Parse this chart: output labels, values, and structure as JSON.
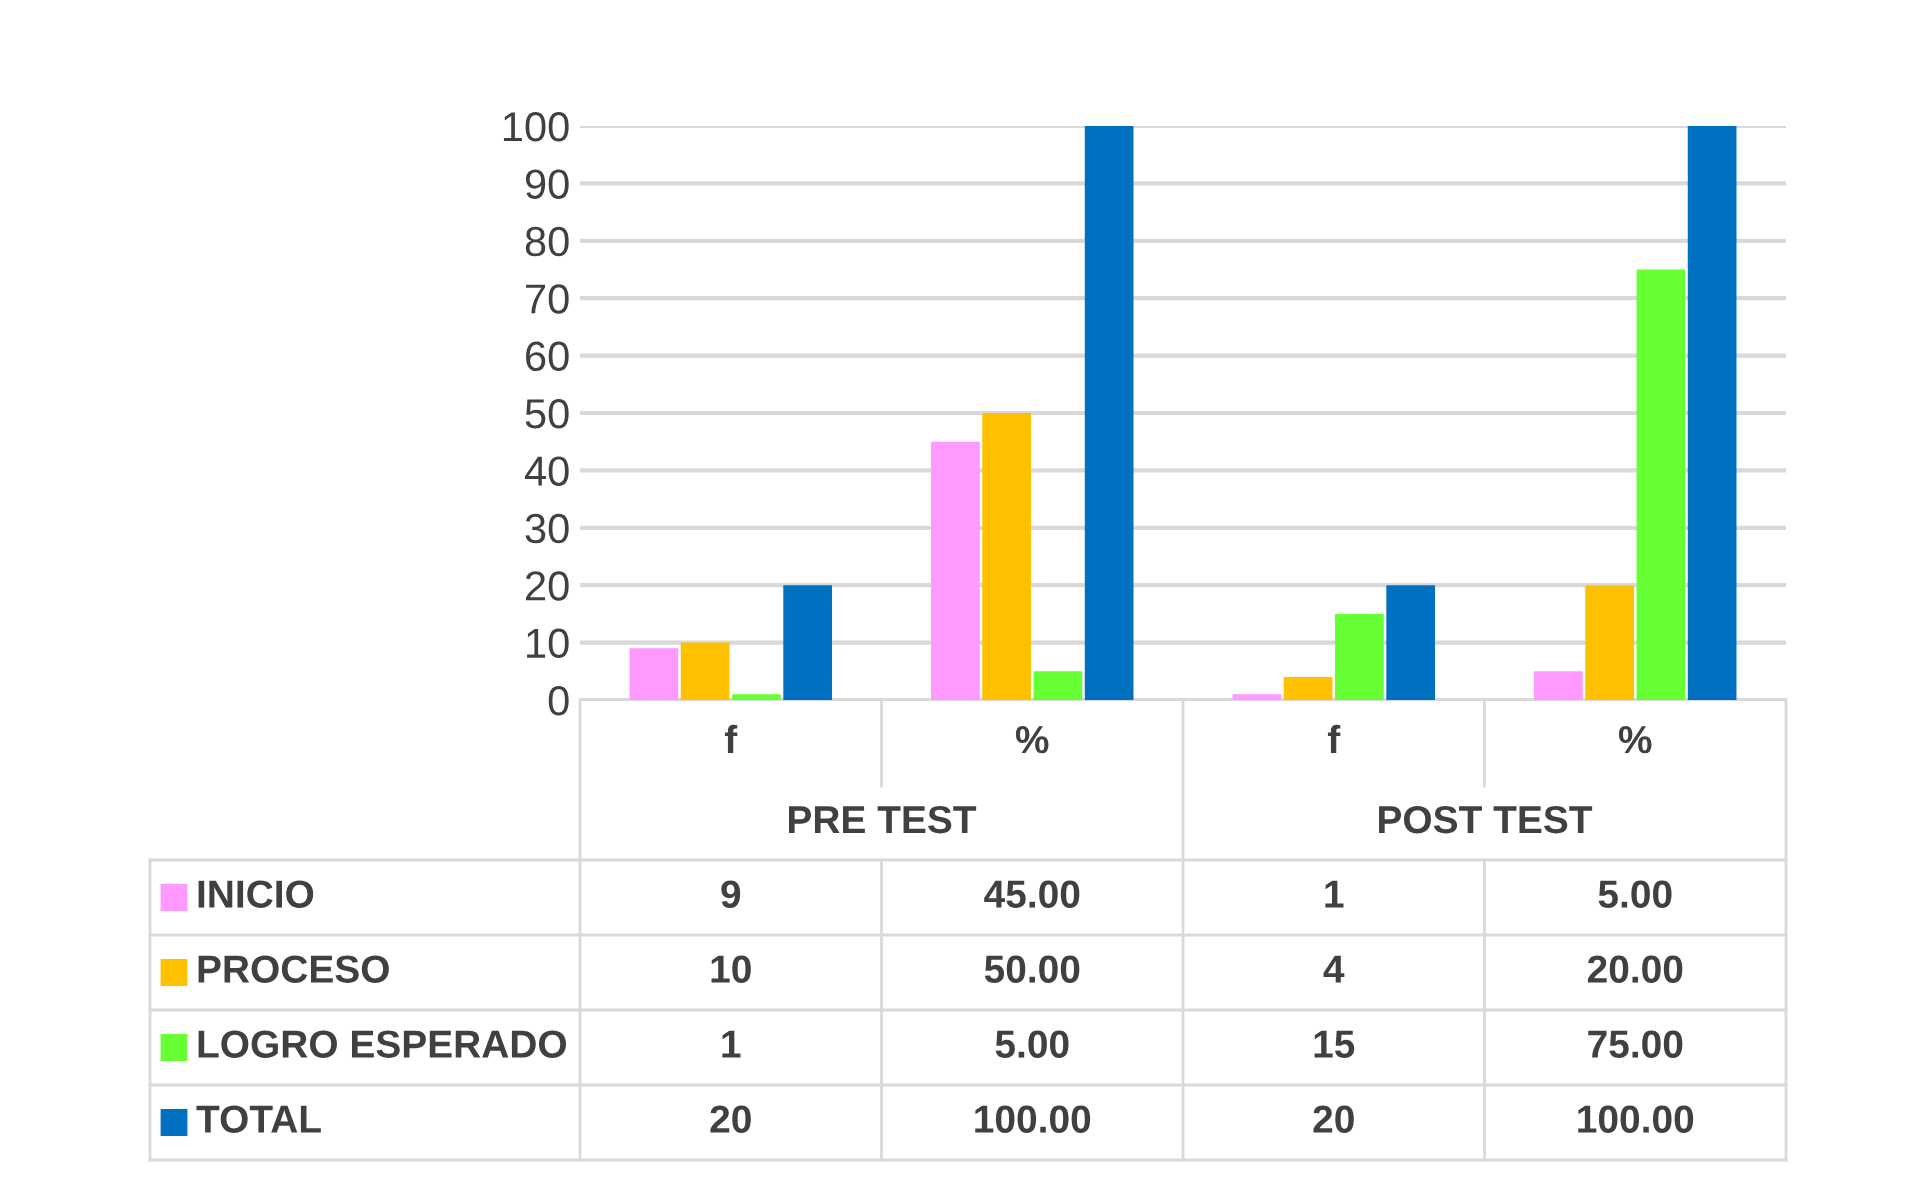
{
  "chart_data": {
    "type": "bar",
    "categories": [
      "f",
      "%",
      "f",
      "%"
    ],
    "annotations": [
      "PRE TEST",
      "POST TEST"
    ],
    "series": [
      {
        "name": "INICIO",
        "color": "#ff99ff",
        "values": [
          9,
          45,
          1,
          5
        ],
        "value_labels": [
          "9",
          "45.00",
          "1",
          "5.00"
        ]
      },
      {
        "name": "PROCESO",
        "color": "#ffc000",
        "values": [
          10,
          50,
          4,
          20
        ],
        "value_labels": [
          "10",
          "50.00",
          "4",
          "20.00"
        ]
      },
      {
        "name": "LOGRO ESPERADO",
        "color": "#66ff33",
        "values": [
          1,
          5,
          15,
          75
        ],
        "value_labels": [
          "1",
          "5.00",
          "15",
          "75.00"
        ]
      },
      {
        "name": "TOTAL",
        "color": "#0070c0",
        "values": [
          20,
          100,
          20,
          100
        ],
        "value_labels": [
          "20",
          "100.00",
          "20",
          "100.00"
        ]
      }
    ],
    "ylim": [
      0,
      100
    ],
    "yticks": [
      0,
      10,
      20,
      30,
      40,
      50,
      60,
      70,
      80,
      90,
      100
    ],
    "grid": "y",
    "legend": "bottom"
  }
}
